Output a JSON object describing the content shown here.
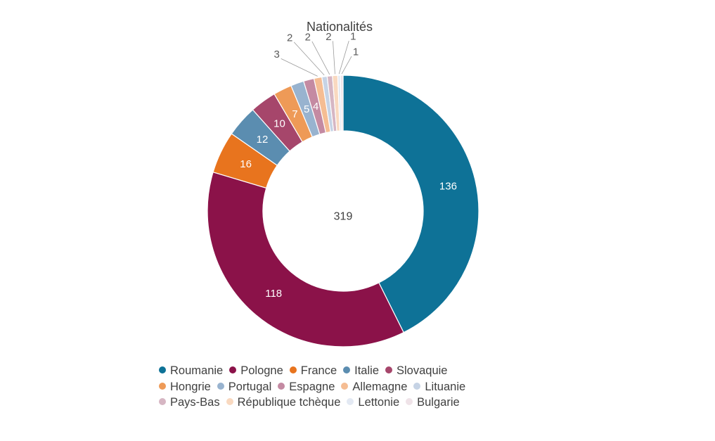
{
  "chart_data": {
    "type": "pie",
    "title": "Nationalités",
    "total_label": "319",
    "categories": [
      "Roumanie",
      "Pologne",
      "France",
      "Italie",
      "Slovaquie",
      "Hongrie",
      "Portugal",
      "Espagne",
      "Allemagne",
      "Lituanie",
      "Pays-Bas",
      "République tchèque",
      "Lettonie",
      "Bulgarie"
    ],
    "values": [
      136,
      118,
      16,
      12,
      10,
      7,
      5,
      4,
      3,
      2,
      2,
      2,
      1,
      1
    ],
    "colors": [
      "#0E7297",
      "#8B1249",
      "#E8741E",
      "#5B8DB0",
      "#A6466B",
      "#EE9A57",
      "#98B3CF",
      "#C48AA2",
      "#F5BD93",
      "#C6D3E5",
      "#D6B6C3",
      "#F9D9C0",
      "#E3E9F3",
      "#EFE3E8"
    ],
    "legend_position": "bottom"
  }
}
